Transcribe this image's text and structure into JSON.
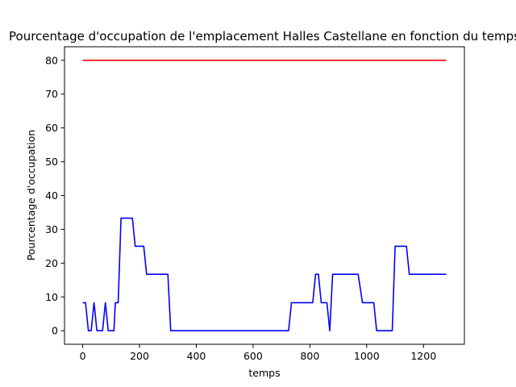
{
  "chart_data": {
    "type": "line",
    "title": "Pourcentage d'occupation de l'emplacement Halles Castellane en fonction du temps",
    "xlabel": "temps",
    "ylabel": "Pourcentage d'occupation",
    "xlim": [
      -64,
      1344
    ],
    "ylim": [
      -4,
      84
    ],
    "xticks": [
      "0",
      "200",
      "400",
      "600",
      "800",
      "1000",
      "1200"
    ],
    "yticks": [
      "0",
      "10",
      "20",
      "30",
      "40",
      "50",
      "60",
      "70",
      "80"
    ],
    "grid": false,
    "series": [
      {
        "color": "#ff0000",
        "x": [
          0,
          1280
        ],
        "y": [
          80,
          80
        ]
      },
      {
        "color": "#0000ff",
        "x": [
          0,
          10,
          20,
          30,
          40,
          50,
          60,
          70,
          80,
          90,
          100,
          110,
          115,
          125,
          135,
          145,
          160,
          175,
          185,
          195,
          205,
          215,
          225,
          235,
          245,
          260,
          280,
          300,
          310,
          320,
          400,
          500,
          600,
          700,
          725,
          735,
          745,
          760,
          780,
          800,
          810,
          820,
          830,
          840,
          850,
          860,
          870,
          880,
          890,
          900,
          920,
          950,
          970,
          985,
          995,
          1010,
          1025,
          1035,
          1050,
          1070,
          1090,
          1100,
          1110,
          1130,
          1140,
          1150,
          1180,
          1220,
          1250,
          1280
        ],
        "y": [
          8.3,
          8.3,
          0,
          0,
          8.3,
          0,
          0,
          0,
          8.3,
          0,
          0,
          0,
          8.3,
          8.3,
          33.3,
          33.3,
          33.3,
          33.3,
          25,
          25,
          25,
          25,
          16.7,
          16.7,
          16.7,
          16.7,
          16.7,
          16.7,
          0,
          0,
          0,
          0,
          0,
          0,
          0,
          8.3,
          8.3,
          8.3,
          8.3,
          8.3,
          8.3,
          16.7,
          16.7,
          8.3,
          8.3,
          8.3,
          0,
          16.7,
          16.7,
          16.7,
          16.7,
          16.7,
          16.7,
          8.3,
          8.3,
          8.3,
          8.3,
          0,
          0,
          0,
          0,
          25,
          25,
          25,
          25,
          16.7,
          16.7,
          16.7,
          16.7,
          16.7
        ]
      }
    ]
  }
}
